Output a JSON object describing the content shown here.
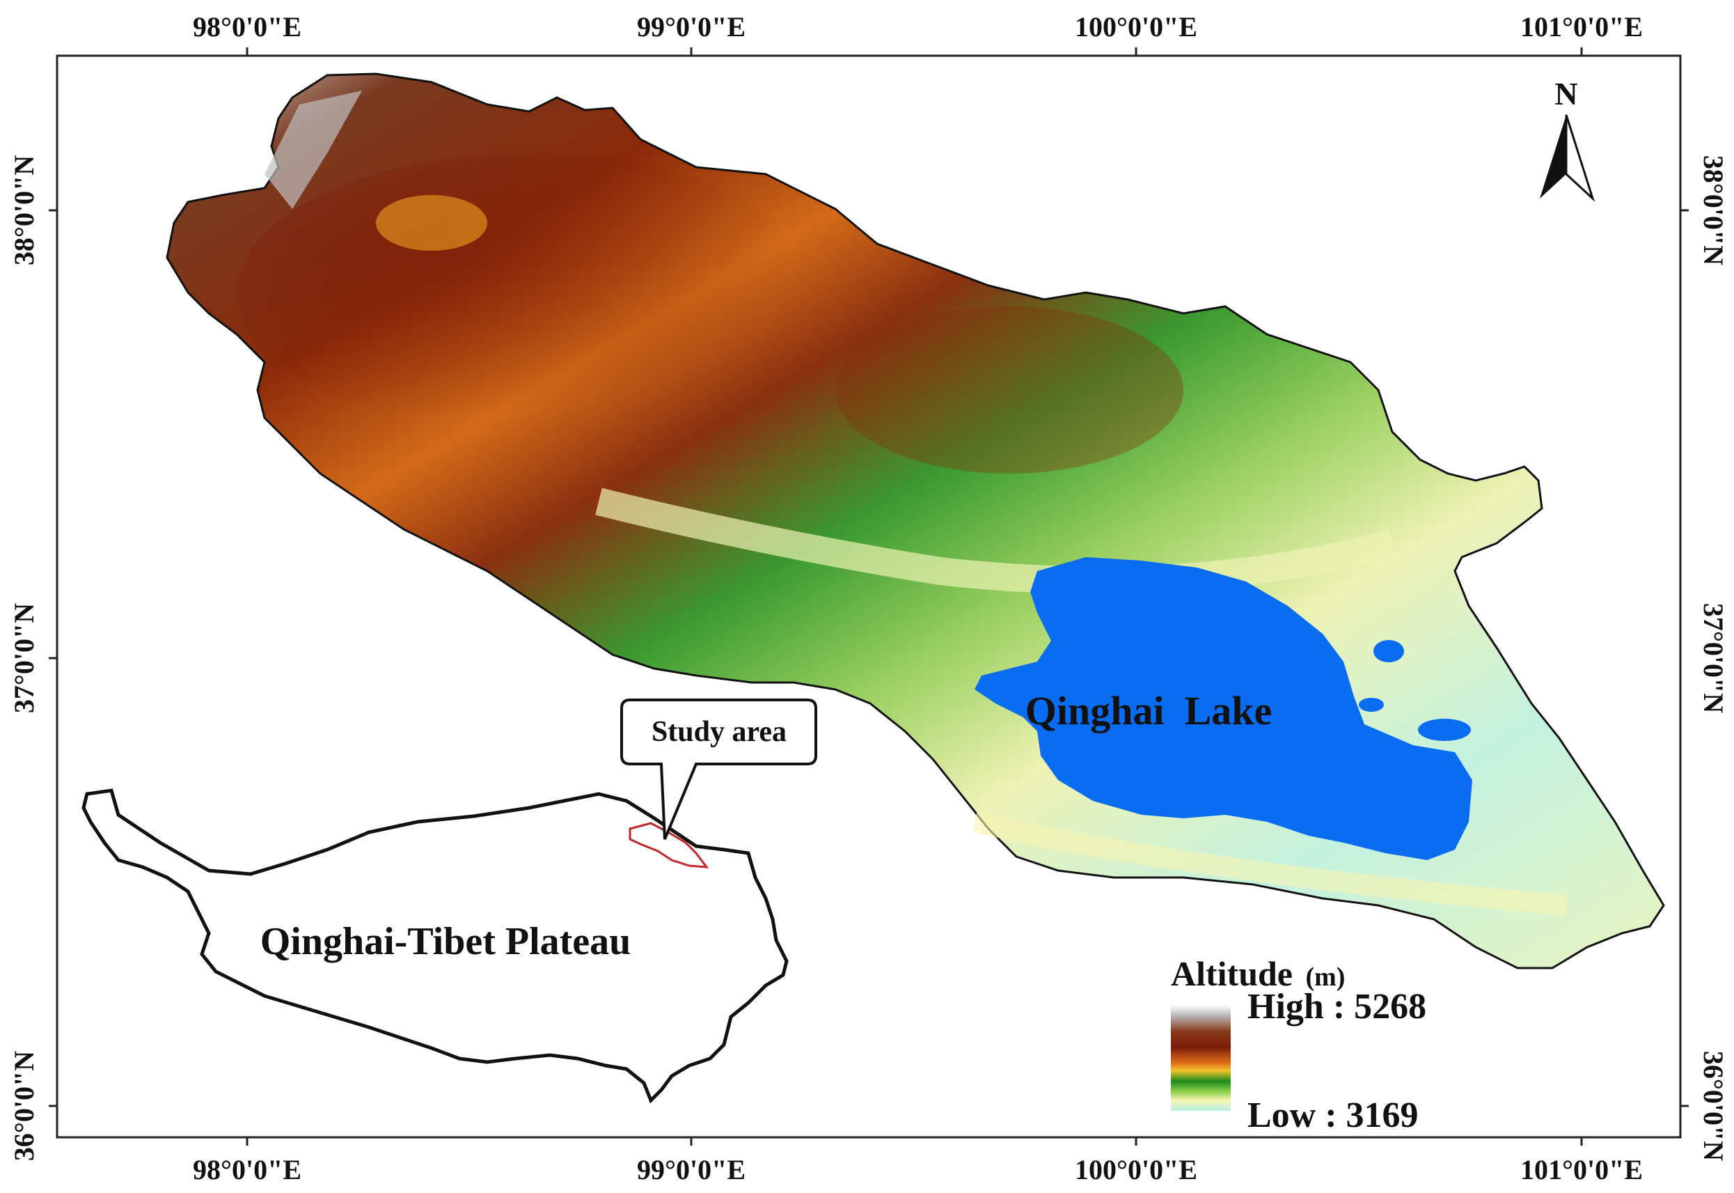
{
  "graticule": {
    "lon_labels": [
      "98°0'0\"E",
      "99°0'0\"E",
      "100°0'0\"E",
      "101°0'0\"E"
    ],
    "lat_labels": [
      "38°0'0\"N",
      "37°0'0\"N",
      "36°0'0\"N"
    ]
  },
  "north_arrow": {
    "label": "N"
  },
  "lake": {
    "label": "Qinghai  Lake",
    "color": "#0a6cf0"
  },
  "inset": {
    "plateau_label": "Qinghai-Tibet Plateau",
    "callout_label": "Study area",
    "study_area_color": "#c0272d"
  },
  "legend": {
    "title": "Altitude",
    "unit": "(m)",
    "high_label": "High : 5268",
    "low_label": "Low : 3169",
    "ramp_colors": [
      "#ffffff",
      "#b0b0b0",
      "#8a3b1c",
      "#7a1a08",
      "#e0701a",
      "#f2c22a",
      "#1c8a1c",
      "#8fd04a",
      "#f7f4b0",
      "#b8f0e8"
    ]
  }
}
